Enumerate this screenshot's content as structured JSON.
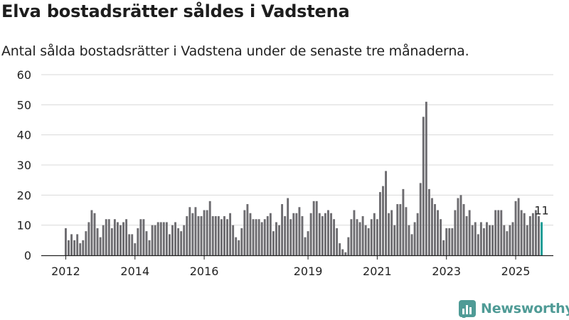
{
  "header": {
    "title": "Elva bostadsrätter såldes i Vadstena",
    "subtitle": "Antal sålda bostadsrätter i Vadstena under de senaste tre månaderna."
  },
  "brand": {
    "name": "Newsworthy",
    "icon": "newsworthy-logo-icon",
    "color": "#4f9b96"
  },
  "colors": {
    "bar": "#6d6c70",
    "highlight": "#1a9c95",
    "grid": "#d9d9d9",
    "axis": "#222222"
  },
  "chart_data": {
    "type": "bar",
    "title": "Elva bostadsrätter såldes i Vadstena",
    "subtitle": "Antal sålda bostadsrätter i Vadstena under de senaste tre månaderna.",
    "xlabel": "",
    "ylabel": "",
    "ylim": [
      0,
      60
    ],
    "yticks": [
      0,
      10,
      20,
      30,
      40,
      50,
      60
    ],
    "grid": true,
    "start": "2012-01",
    "interval": "month",
    "values": [
      9,
      5,
      7,
      5,
      7,
      4,
      5,
      8,
      11,
      15,
      14,
      9,
      6,
      10,
      12,
      12,
      9,
      12,
      11,
      10,
      11,
      12,
      7,
      7,
      4,
      9,
      12,
      12,
      8,
      5,
      10,
      10,
      11,
      11,
      11,
      11,
      7,
      10,
      11,
      9,
      8,
      10,
      13,
      16,
      14,
      16,
      13,
      13,
      15,
      15,
      18,
      13,
      13,
      13,
      12,
      13,
      12,
      14,
      10,
      6,
      5,
      9,
      15,
      17,
      14,
      12,
      12,
      12,
      11,
      12,
      13,
      14,
      8,
      11,
      10,
      17,
      13,
      19,
      12,
      14,
      14,
      16,
      13,
      6,
      8,
      14,
      18,
      18,
      14,
      13,
      14,
      15,
      14,
      12,
      9,
      4,
      2,
      1,
      6,
      12,
      15,
      12,
      11,
      13,
      10,
      9,
      12,
      14,
      12,
      21,
      23,
      28,
      14,
      15,
      10,
      17,
      17,
      22,
      16,
      10,
      7,
      11,
      14,
      24,
      46,
      51,
      22,
      19,
      17,
      15,
      12,
      5,
      9,
      9,
      9,
      15,
      19,
      20,
      17,
      13,
      15,
      10,
      11,
      7,
      11,
      9,
      11,
      10,
      10,
      15,
      15,
      15,
      10,
      8,
      10,
      11,
      18,
      19,
      15,
      14,
      10,
      13,
      14,
      15,
      13,
      11
    ],
    "x_tick_labels": [
      {
        "label": "2012",
        "year": 2012
      },
      {
        "label": "2014",
        "year": 2014
      },
      {
        "label": "2016",
        "year": 2016
      },
      {
        "label": "2019",
        "year": 2019
      },
      {
        "label": "2021",
        "year": 2021
      },
      {
        "label": "2023",
        "year": 2023
      },
      {
        "label": "2025",
        "year": 2025
      }
    ],
    "highlight": {
      "index": 165,
      "label": "11",
      "value": 11
    }
  }
}
